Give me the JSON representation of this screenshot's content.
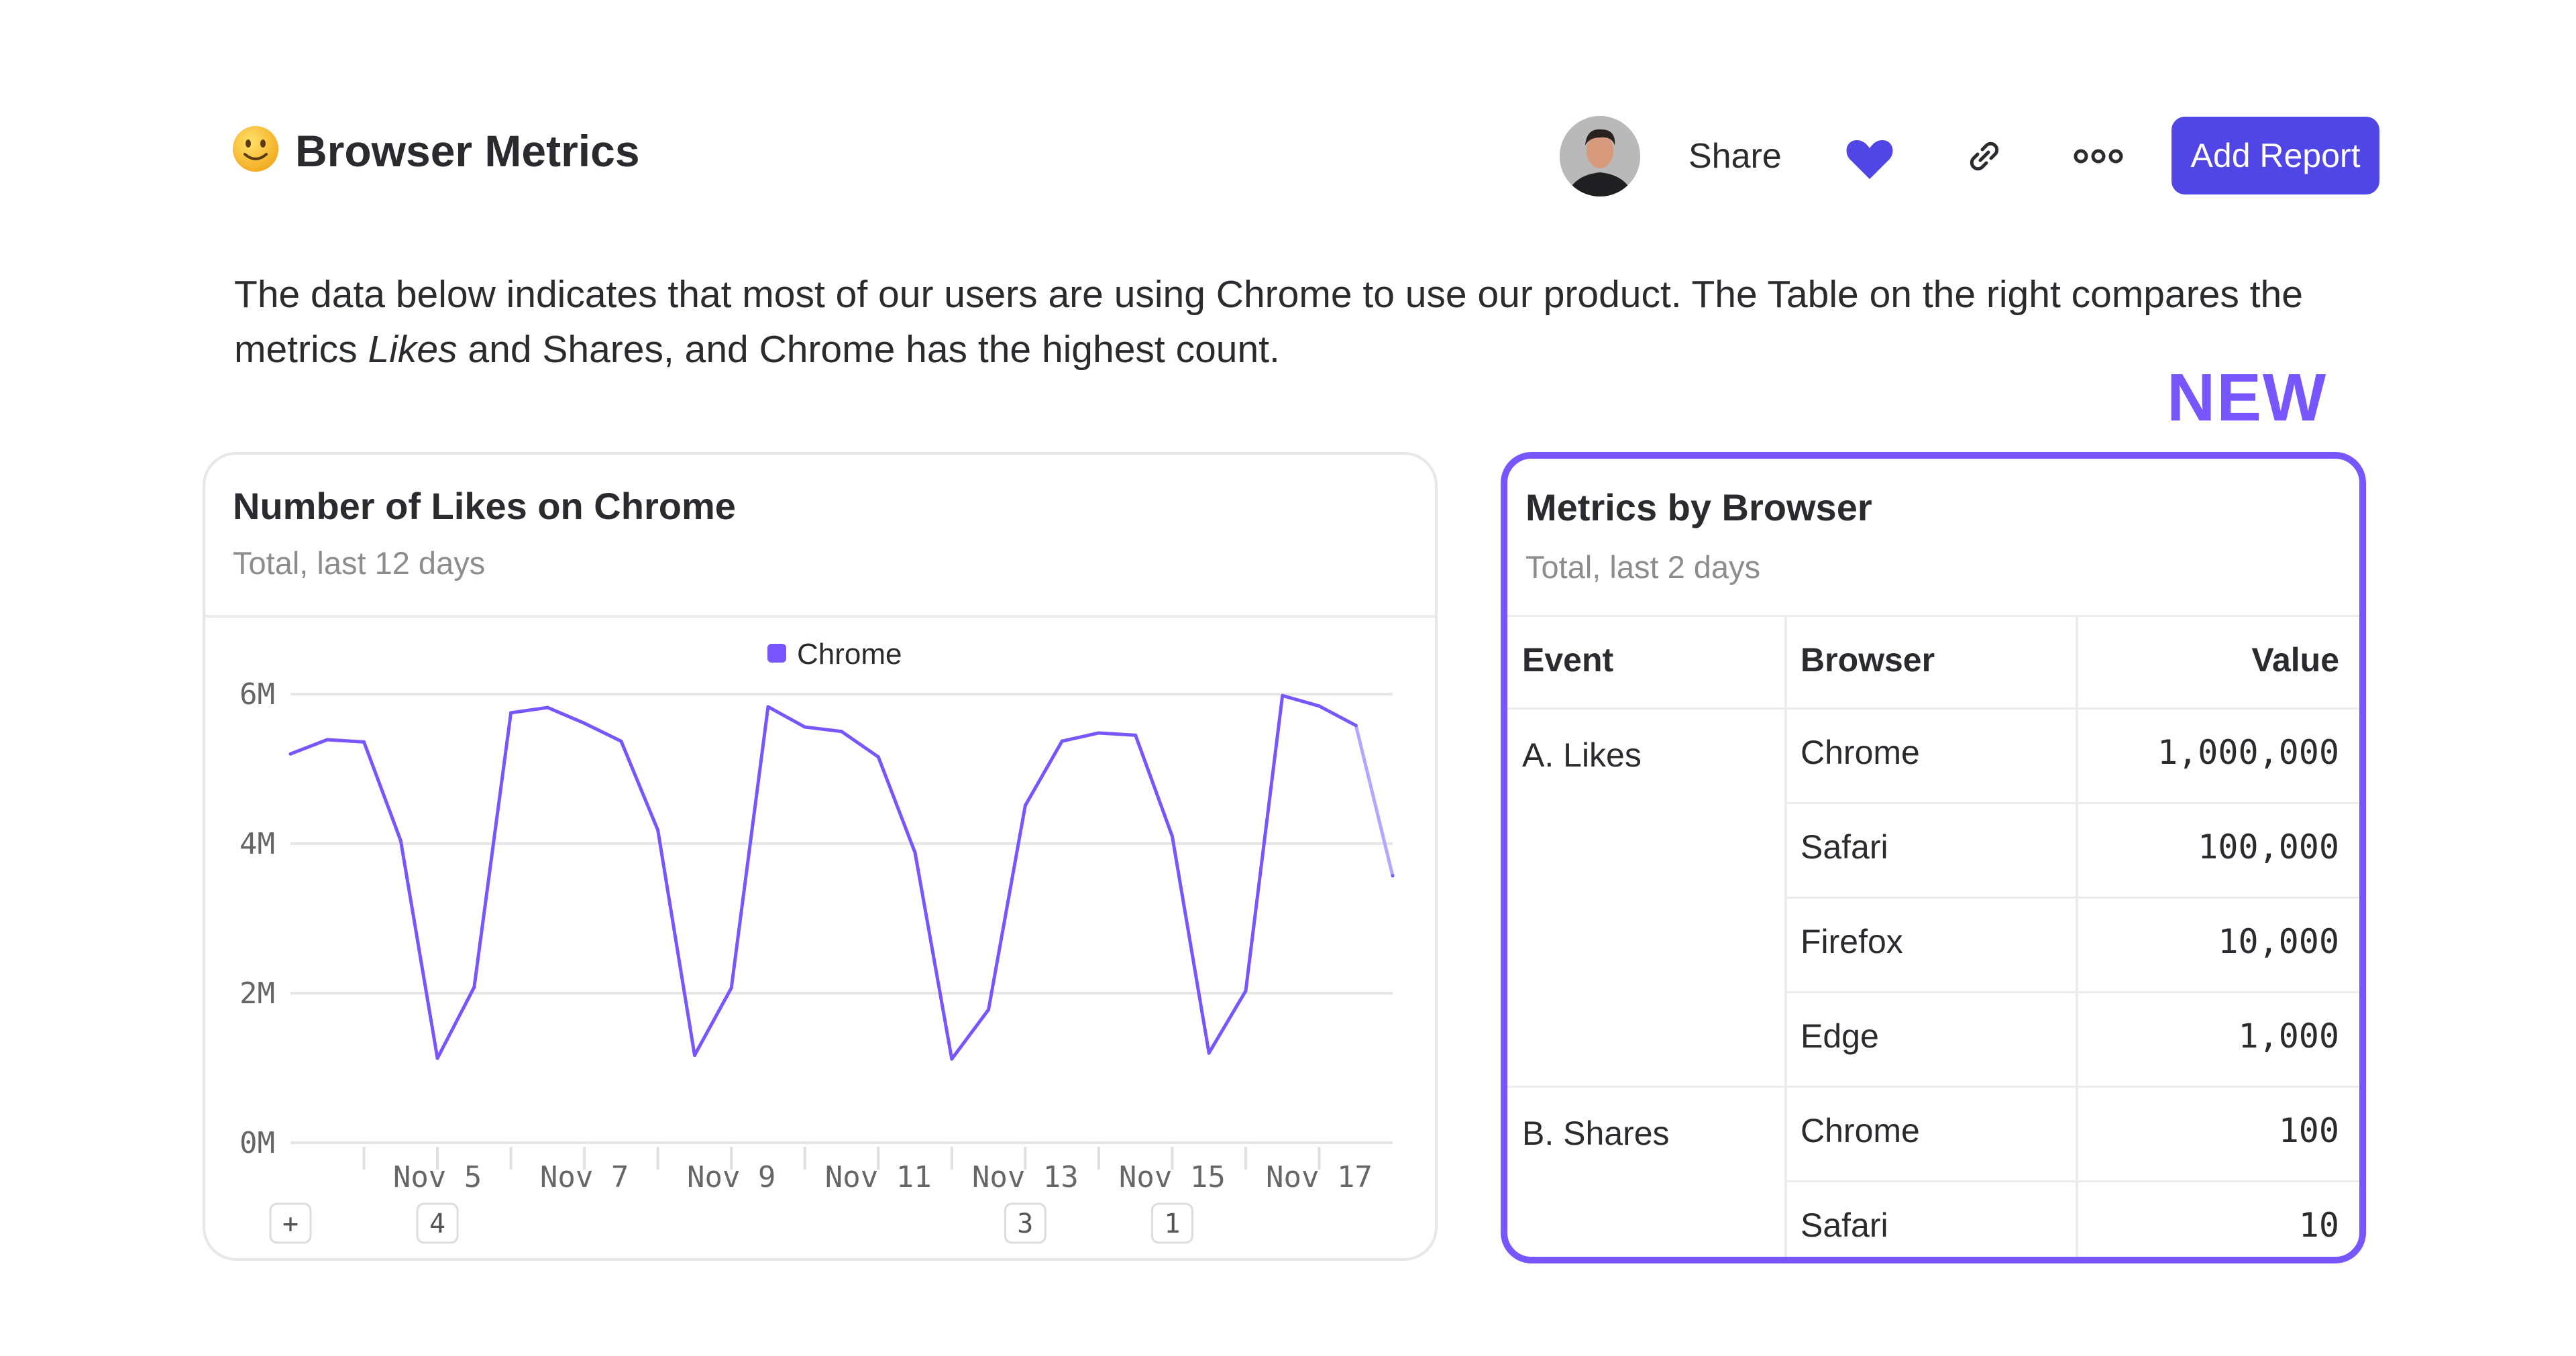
{
  "header": {
    "emoji": "slightly-smiling-face",
    "title": "Browser Metrics",
    "share_label": "Share",
    "add_report_label": "Add Report",
    "icons": [
      "avatar",
      "heart-icon",
      "link-icon",
      "more-icon"
    ]
  },
  "description": {
    "part1": "The data below indicates that most of our users are using Chrome to use our product. The Table on the right compares the metrics ",
    "italic": "Likes",
    "part2": " and Shares, and Chrome has the highest count."
  },
  "new_badge": "NEW",
  "colors": {
    "accent": "#7856ff",
    "button": "#5046e5",
    "heart": "#5046e5",
    "text": "#2b2b2f",
    "muted": "#8c8c8c"
  },
  "left_card": {
    "title": "Number of Likes on Chrome",
    "subtitle": "Total, last 12 days"
  },
  "chart_data": {
    "type": "line",
    "title": "",
    "xlabel": "",
    "ylabel": "",
    "legend": {
      "position": "top-center",
      "entries": [
        "Chrome"
      ]
    },
    "grid": true,
    "ylim": [
      0,
      6000000
    ],
    "y_ticks": [
      "0M",
      "2M",
      "4M",
      "6M"
    ],
    "y_tick_values": [
      0,
      2000000,
      4000000,
      6000000
    ],
    "x_unit": "day of November",
    "xlim": [
      3,
      18
    ],
    "x_ticks": [
      5,
      7,
      9,
      11,
      13,
      15,
      17
    ],
    "x_tick_labels": [
      "Nov 5",
      "Nov 7",
      "Nov 9",
      "Nov 11",
      "Nov 13",
      "Nov 15",
      "Nov 17"
    ],
    "x_minor_ticks": [
      4,
      5,
      6,
      7,
      8,
      9,
      10,
      11,
      12,
      13,
      14,
      15,
      16,
      17
    ],
    "series": [
      {
        "name": "Chrome",
        "color": "#7856ff",
        "x": [
          3,
          3.5,
          4,
          4.5,
          5,
          5.5,
          6,
          6.5,
          7,
          7.5,
          8,
          8.5,
          9,
          9.5,
          10,
          10.5,
          11,
          11.5,
          12,
          12.5,
          13,
          13.5,
          14,
          14.5,
          15,
          15.5,
          16,
          16.5,
          17,
          17.5,
          18
        ],
        "values": [
          5200000,
          5390000,
          5360000,
          4040000,
          1130000,
          2080000,
          5750000,
          5820000,
          5610000,
          5370000,
          4180000,
          1170000,
          2070000,
          5830000,
          5560000,
          5500000,
          5160000,
          3880000,
          1120000,
          1780000,
          4510000,
          5370000,
          5480000,
          5450000,
          4100000,
          1200000,
          2030000,
          5980000,
          5840000,
          5580000,
          3570000
        ],
        "incomplete_last_segment": true
      }
    ],
    "annotations": [
      {
        "x": 3,
        "label": "+"
      },
      {
        "x": 5,
        "label": "4"
      },
      {
        "x": 13,
        "label": "3"
      },
      {
        "x": 15,
        "label": "1"
      }
    ]
  },
  "right_card": {
    "title": "Metrics by Browser",
    "subtitle": "Total, last 2 days",
    "columns": [
      "Event",
      "Browser",
      "Value"
    ],
    "groups": [
      {
        "event": "A. Likes",
        "rows": [
          {
            "browser": "Chrome",
            "value": "1,000,000"
          },
          {
            "browser": "Safari",
            "value": "100,000"
          },
          {
            "browser": "Firefox",
            "value": "10,000"
          },
          {
            "browser": "Edge",
            "value": "1,000"
          }
        ]
      },
      {
        "event": "B. Shares",
        "rows": [
          {
            "browser": "Chrome",
            "value": "100"
          },
          {
            "browser": "Safari",
            "value": "10"
          }
        ]
      }
    ]
  }
}
